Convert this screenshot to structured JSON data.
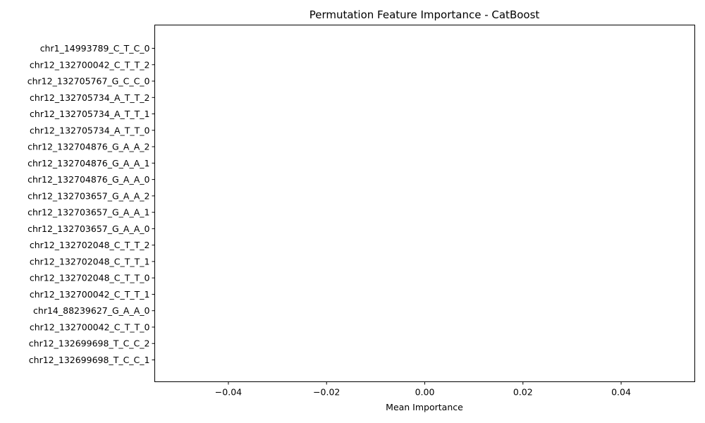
{
  "chart_data": {
    "type": "bar",
    "orientation": "horizontal",
    "title": "Permutation Feature Importance - CatBoost",
    "xlabel": "Mean Importance",
    "ylabel": "",
    "xlim": [
      -0.055,
      0.055
    ],
    "x_ticks": [
      -0.04,
      -0.02,
      0.0,
      0.02,
      0.04
    ],
    "x_tick_labels": [
      "−0.04",
      "−0.02",
      "0.00",
      "0.02",
      "0.04"
    ],
    "grid": false,
    "categories": [
      "chr1_14993789_C_T_C_0",
      "chr12_132700042_C_T_T_2",
      "chr12_132705767_G_C_C_0",
      "chr12_132705734_A_T_T_2",
      "chr12_132705734_A_T_T_1",
      "chr12_132705734_A_T_T_0",
      "chr12_132704876_G_A_A_2",
      "chr12_132704876_G_A_A_1",
      "chr12_132704876_G_A_A_0",
      "chr12_132703657_G_A_A_2",
      "chr12_132703657_G_A_A_1",
      "chr12_132703657_G_A_A_0",
      "chr12_132702048_C_T_T_2",
      "chr12_132702048_C_T_T_1",
      "chr12_132702048_C_T_T_0",
      "chr12_132700042_C_T_T_1",
      "chr14_88239627_G_A_A_0",
      "chr12_132700042_C_T_T_0",
      "chr12_132699698_T_C_C_2",
      "chr12_132699698_T_C_C_1"
    ],
    "values": [
      0,
      0,
      0,
      0,
      0,
      0,
      0,
      0,
      0,
      0,
      0,
      0,
      0,
      0,
      0,
      0,
      0,
      0,
      0,
      0
    ],
    "bar_color": "#1f77b4"
  }
}
